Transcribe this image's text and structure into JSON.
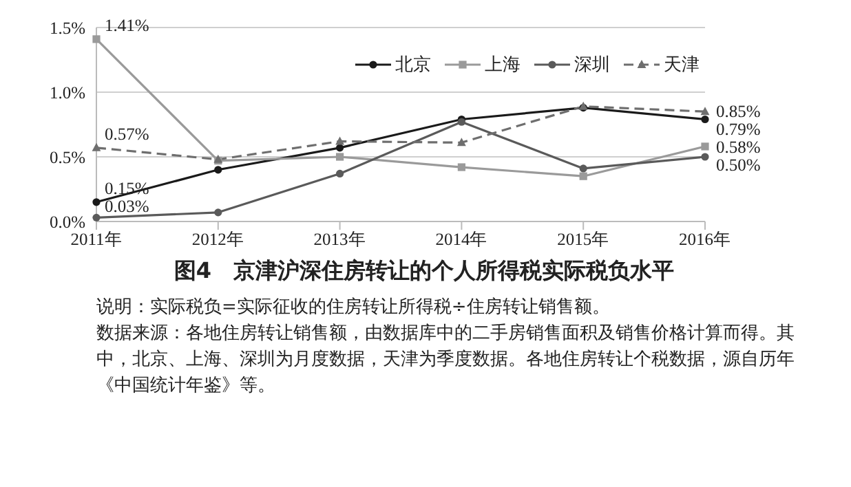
{
  "chart_data": {
    "type": "line",
    "title": "图4　京津沪深住房转让的个人所得税实际税负水平",
    "categories": [
      "2011年",
      "2012年",
      "2013年",
      "2014年",
      "2015年",
      "2016年"
    ],
    "series": [
      {
        "name": "北京",
        "color": "#1a1a1a",
        "marker": "circle",
        "line_style": "solid",
        "values": [
          0.15,
          0.4,
          0.57,
          0.79,
          0.88,
          0.79
        ],
        "value_labels": [
          "0.15%",
          null,
          null,
          null,
          null,
          "0.79%"
        ]
      },
      {
        "name": "上海",
        "color": "#9a9a9a",
        "marker": "square",
        "line_style": "solid",
        "values": [
          1.41,
          0.47,
          0.5,
          0.42,
          0.35,
          0.58
        ],
        "value_labels": [
          "1.41%",
          null,
          null,
          null,
          null,
          "0.58%"
        ]
      },
      {
        "name": "深圳",
        "color": "#5a5a5a",
        "marker": "circle",
        "line_style": "solid",
        "values": [
          0.03,
          0.07,
          0.37,
          0.77,
          0.41,
          0.5
        ],
        "value_labels": [
          "0.03%",
          null,
          null,
          null,
          null,
          "0.50%"
        ]
      },
      {
        "name": "天津",
        "color": "#6e6e6e",
        "marker": "triangle",
        "line_style": "dashed",
        "values": [
          0.57,
          0.48,
          0.62,
          0.61,
          0.89,
          0.85
        ],
        "value_labels": [
          "0.57%",
          null,
          null,
          null,
          null,
          "0.85%"
        ]
      }
    ],
    "ylim": [
      0,
      1.5
    ],
    "yticks": [
      {
        "value": 0,
        "label": "0.0%"
      },
      {
        "value": 0.5,
        "label": "0.5%"
      },
      {
        "value": 1,
        "label": "1.0%"
      },
      {
        "value": 1.5,
        "label": "1.5%"
      }
    ],
    "grid": "y",
    "legend": "top right",
    "annotations": [
      "说明：实际税负=实际征收的住房转让所得税÷住房转让销售额。",
      "数据来源：各地住房转让销售额，由数据库中的二手房销售面积及销售价格计算而得。其中，北京、上海、深圳为月度数据，天津为季度数据。各地住房转让个税数据，源自历年《中国统计年鉴》等。"
    ]
  }
}
